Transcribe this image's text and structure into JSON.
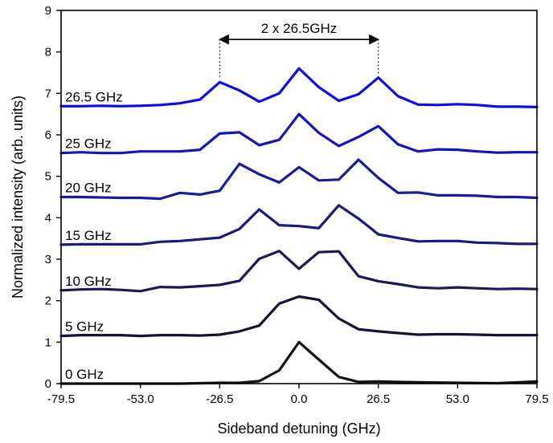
{
  "chart_data": {
    "type": "line",
    "title": "",
    "xlabel": "Sideband detuning (GHz)",
    "ylabel": "Normalized intensity (arb. units)",
    "xlim": [
      -79.5,
      79.5
    ],
    "ylim": [
      0,
      9
    ],
    "x_ticks": [
      -79.5,
      -53.0,
      -26.5,
      0.0,
      26.5,
      53.0,
      79.5
    ],
    "x_tick_labels": [
      "-79.5",
      "-53.0",
      "-26.5",
      "0.0",
      "26.5",
      "53.0",
      "79.5"
    ],
    "y_ticks": [
      0,
      1,
      2,
      3,
      4,
      5,
      6,
      7,
      8,
      9
    ],
    "y_tick_labels": [
      "0",
      "1",
      "2",
      "3",
      "4",
      "5",
      "6",
      "7",
      "8",
      "9"
    ],
    "grid": false,
    "annotation": {
      "text": "2 x 26.5GHz",
      "x_start": -26.5,
      "x_end": 26.5,
      "y": 8.3
    },
    "series": [
      {
        "name": "0 GHz",
        "color": "#111111",
        "x": [
          -79.5,
          -66.3,
          -53.0,
          -39.8,
          -26.5,
          -19.9,
          -13.3,
          -6.6,
          0.0,
          6.6,
          13.3,
          19.9,
          26.5,
          39.8,
          53.0,
          66.3,
          79.5
        ],
        "y": [
          0.0,
          0.0,
          0.0,
          0.0,
          0.02,
          0.02,
          0.06,
          0.32,
          1.0,
          0.58,
          0.16,
          0.04,
          0.05,
          0.03,
          0.02,
          0.01,
          0.05
        ]
      },
      {
        "name": "5 GHz",
        "color": "#121238",
        "x": [
          -79.5,
          -72.9,
          -66.3,
          -59.6,
          -53.0,
          -46.4,
          -39.8,
          -33.1,
          -26.5,
          -19.9,
          -13.3,
          -6.6,
          0.0,
          6.6,
          13.3,
          19.9,
          26.5,
          33.1,
          39.8,
          46.4,
          53.0,
          59.6,
          66.3,
          72.9,
          79.5
        ],
        "y": [
          1.15,
          1.17,
          1.17,
          1.17,
          1.15,
          1.17,
          1.17,
          1.16,
          1.18,
          1.26,
          1.4,
          1.93,
          2.1,
          2.02,
          1.57,
          1.31,
          1.26,
          1.22,
          1.18,
          1.19,
          1.19,
          1.18,
          1.17,
          1.17,
          1.17
        ]
      },
      {
        "name": "10 GHz",
        "color": "#1a1a58",
        "x": [
          -79.5,
          -72.9,
          -66.3,
          -59.6,
          -53.0,
          -46.4,
          -39.8,
          -33.1,
          -26.5,
          -19.9,
          -13.3,
          -6.6,
          0.0,
          6.6,
          13.3,
          19.9,
          26.5,
          33.1,
          39.8,
          46.4,
          53.0,
          59.6,
          66.3,
          72.9,
          79.5
        ],
        "y": [
          2.25,
          2.27,
          2.28,
          2.26,
          2.23,
          2.33,
          2.32,
          2.35,
          2.38,
          2.48,
          3.01,
          3.2,
          2.77,
          3.17,
          3.19,
          2.59,
          2.47,
          2.4,
          2.32,
          2.3,
          2.32,
          2.3,
          2.28,
          2.29,
          2.28
        ]
      },
      {
        "name": "15 GHz",
        "color": "#1a1a7c",
        "x": [
          -79.5,
          -72.9,
          -66.3,
          -59.6,
          -53.0,
          -46.4,
          -39.8,
          -33.1,
          -26.5,
          -19.9,
          -13.3,
          -6.6,
          0.0,
          6.6,
          13.3,
          19.9,
          26.5,
          33.1,
          39.8,
          46.4,
          53.0,
          59.6,
          66.3,
          72.9,
          79.5
        ],
        "y": [
          3.35,
          3.36,
          3.36,
          3.36,
          3.36,
          3.42,
          3.44,
          3.48,
          3.52,
          3.73,
          4.2,
          3.82,
          3.8,
          3.75,
          4.3,
          3.98,
          3.6,
          3.51,
          3.43,
          3.44,
          3.44,
          3.4,
          3.39,
          3.37,
          3.37
        ]
      },
      {
        "name": "20 GHz",
        "color": "#1a1a9c",
        "x": [
          -79.5,
          -72.9,
          -66.3,
          -59.6,
          -53.0,
          -46.4,
          -39.8,
          -33.1,
          -26.5,
          -19.9,
          -13.3,
          -6.6,
          0.0,
          6.6,
          13.3,
          19.9,
          26.5,
          33.1,
          39.8,
          46.4,
          53.0,
          59.6,
          66.3,
          72.9,
          79.5
        ],
        "y": [
          4.5,
          4.5,
          4.49,
          4.48,
          4.48,
          4.46,
          4.6,
          4.56,
          4.65,
          5.3,
          5.05,
          4.85,
          5.22,
          4.9,
          4.92,
          5.4,
          4.96,
          4.6,
          4.61,
          4.54,
          4.54,
          4.53,
          4.5,
          4.5,
          4.48
        ]
      },
      {
        "name": "25 GHz",
        "color": "#1414bd",
        "x": [
          -79.5,
          -72.9,
          -66.3,
          -59.6,
          -53.0,
          -46.4,
          -39.8,
          -33.1,
          -26.5,
          -19.9,
          -13.3,
          -6.6,
          0.0,
          6.6,
          13.3,
          19.9,
          26.5,
          33.1,
          39.8,
          46.4,
          53.0,
          59.6,
          66.3,
          72.9,
          79.5
        ],
        "y": [
          5.56,
          5.58,
          5.56,
          5.56,
          5.6,
          5.6,
          5.6,
          5.64,
          6.03,
          6.06,
          5.75,
          5.88,
          6.5,
          6.05,
          5.73,
          5.95,
          6.21,
          5.77,
          5.6,
          5.65,
          5.64,
          5.6,
          5.57,
          5.58,
          5.58
        ]
      },
      {
        "name": "26.5 GHz",
        "color": "#0c0ce6",
        "x": [
          -79.5,
          -72.9,
          -66.3,
          -59.6,
          -53.0,
          -46.4,
          -39.8,
          -33.1,
          -26.5,
          -19.9,
          -13.3,
          -6.6,
          0.0,
          6.6,
          13.3,
          19.9,
          26.5,
          33.1,
          39.8,
          46.4,
          53.0,
          59.6,
          66.3,
          72.9,
          79.5
        ],
        "y": [
          6.69,
          6.69,
          6.7,
          6.69,
          6.7,
          6.72,
          6.76,
          6.85,
          7.27,
          7.07,
          6.8,
          7.0,
          7.6,
          7.15,
          6.82,
          6.98,
          7.38,
          6.93,
          6.73,
          6.72,
          6.74,
          6.72,
          6.68,
          6.68,
          6.67
        ]
      }
    ]
  }
}
